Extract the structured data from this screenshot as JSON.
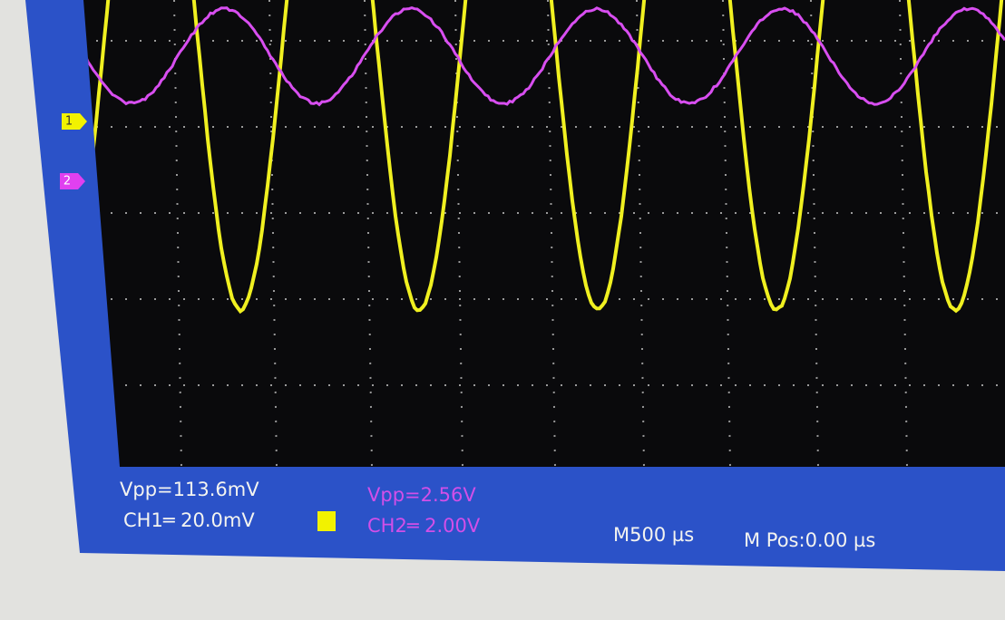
{
  "channel_markers": [
    "1",
    "2"
  ],
  "readouts": {
    "ch1_vpp": "Vpp=113.6mV",
    "ch1_scale": "CH1═ 20.0mV",
    "ch2_vpp": "Vpp=2.56V",
    "ch2_scale": "CH2═ 2.00V",
    "timebase": "M500 µs",
    "position": "M Pos:0.00 µs"
  }
}
